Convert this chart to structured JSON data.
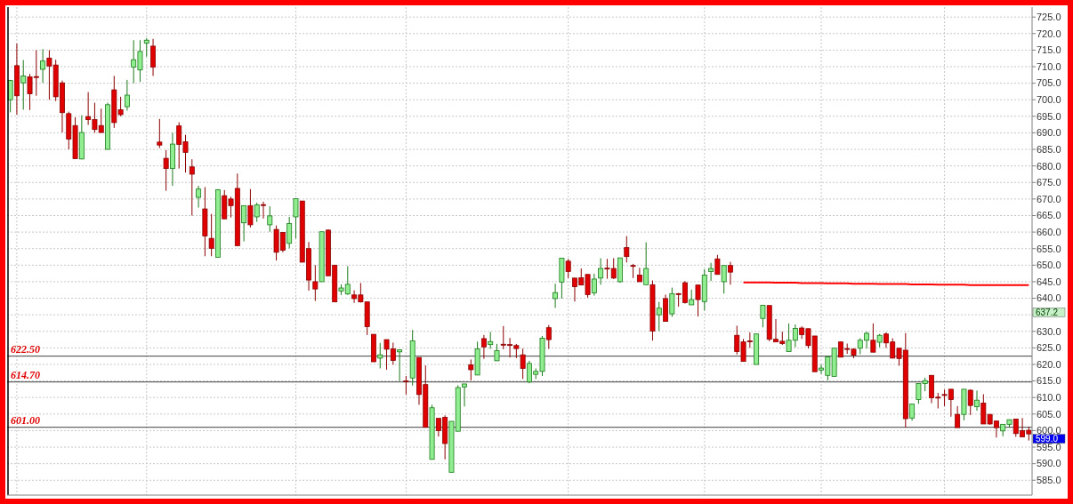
{
  "chart_data": {
    "type": "candlestick",
    "categories": [
      null,
      null,
      null,
      null,
      null,
      null,
      null,
      null,
      null,
      null,
      null,
      null,
      null,
      null,
      null,
      null,
      null,
      null,
      null,
      null,
      null,
      null,
      null,
      null,
      null,
      null,
      null,
      null,
      null,
      null,
      null,
      null,
      null,
      null,
      null,
      null,
      null,
      null,
      null,
      null,
      null,
      null,
      null,
      null,
      null,
      null,
      null,
      null,
      null,
      null,
      null,
      null,
      null,
      null,
      null,
      null,
      null,
      null,
      null,
      null,
      null,
      null,
      null,
      null,
      null,
      null,
      null,
      null,
      null,
      null,
      null,
      null,
      null,
      null,
      null,
      null,
      null,
      null,
      null,
      null,
      null,
      null,
      null,
      null,
      null,
      null,
      null,
      null,
      null,
      null,
      null,
      null,
      null,
      null,
      null,
      null,
      null,
      null,
      null,
      null,
      null,
      null,
      null,
      null,
      null,
      null,
      null,
      null,
      null,
      null,
      null,
      null,
      null,
      null,
      null,
      null,
      null,
      null,
      null,
      null,
      null,
      null,
      null,
      null,
      null,
      null,
      null,
      null,
      null,
      null,
      null,
      null,
      null,
      null,
      null,
      null,
      null,
      null,
      null,
      null,
      null,
      null,
      null,
      null,
      null,
      null,
      null,
      null,
      null,
      null,
      null,
      null,
      null,
      null,
      null,
      null,
      null,
      null
    ],
    "ohlc": [
      [
        700.0,
        706,
        696.2,
        705.8
      ],
      [
        710.3,
        717,
        695.5,
        701.2
      ],
      [
        705.1,
        712,
        697,
        707.2
      ],
      [
        706.9,
        707.8,
        696.9,
        701.8
      ],
      [
        707,
        715,
        701.2,
        706.8
      ],
      [
        709.2,
        715.3,
        705.1,
        711.7
      ],
      [
        712.6,
        715,
        700,
        710.2
      ],
      [
        710.5,
        712.1,
        699.6,
        700.9
      ],
      [
        705.1,
        705.8,
        690.1,
        696.1
      ],
      [
        695.8,
        696.4,
        685,
        688.1
      ],
      [
        692.2,
        694.7,
        682.2,
        682.2
      ],
      [
        682.1,
        695.3,
        682,
        690.1
      ],
      [
        694.9,
        702.3,
        692.4,
        694
      ],
      [
        694,
        699.1,
        690,
        691
      ],
      [
        692.2,
        697.3,
        690.1,
        690.1
      ],
      [
        685,
        699.1,
        685,
        698.5
      ],
      [
        703,
        707.2,
        691.5,
        693.1
      ],
      [
        697,
        700.9,
        695,
        695.5
      ],
      [
        697.9,
        706,
        696.7,
        701.4
      ],
      [
        709.9,
        718,
        705,
        712.1
      ],
      [
        709,
        718,
        705.4,
        714.6
      ],
      [
        717.1,
        718.6,
        713,
        718
      ],
      [
        716.2,
        718.4,
        707.2,
        709.9
      ],
      [
        687.2,
        694.2,
        685.4,
        686.3
      ],
      [
        682.3,
        684.8,
        672.5,
        679.2
      ],
      [
        679.2,
        690,
        674,
        686.6
      ],
      [
        692.1,
        693.2,
        679.2,
        686.5
      ],
      [
        687.3,
        689.4,
        678,
        684.1
      ],
      [
        679.7,
        682,
        665,
        677.5
      ],
      [
        670.5,
        674,
        667.4,
        673
      ],
      [
        667,
        673.6,
        652.7,
        658.8
      ],
      [
        658.1,
        665.5,
        652.7,
        655.1
      ],
      [
        652.4,
        673,
        652.4,
        672.8
      ],
      [
        671,
        672.7,
        664,
        664
      ],
      [
        670,
        670.7,
        664.4,
        668
      ],
      [
        673.2,
        677.7,
        655.9,
        655.9
      ],
      [
        662.8,
        668,
        657.2,
        668
      ],
      [
        668,
        673,
        661.4,
        662.2
      ],
      [
        664.6,
        668.9,
        663.1,
        668.2
      ],
      [
        668.3,
        669.2,
        664.1,
        668.1
      ],
      [
        662.2,
        667.8,
        660.1,
        664.9
      ],
      [
        660.8,
        662,
        651.4,
        653.9
      ],
      [
        659.9,
        659.9,
        653.9,
        654.5
      ],
      [
        656.6,
        664.6,
        655.1,
        662.6
      ],
      [
        664.6,
        670.1,
        658.1,
        670.1
      ],
      [
        669.4,
        669.4,
        650.9,
        650.9
      ],
      [
        655,
        657,
        642.3,
        645.5
      ],
      [
        645,
        650,
        639.2,
        642.8
      ],
      [
        645,
        660.1,
        645,
        660.1
      ],
      [
        660.6,
        660.8,
        646.8,
        646.8
      ],
      [
        650,
        650,
        638.9,
        638.9
      ],
      [
        642.2,
        644.2,
        641,
        643.1
      ],
      [
        641.3,
        649.7,
        641,
        644.2
      ],
      [
        641,
        642.4,
        638.6,
        639.9
      ],
      [
        641,
        644.6,
        638.7,
        638.9
      ],
      [
        638.9,
        638.9,
        628.9,
        631.4
      ],
      [
        629.1,
        629.1,
        620.8,
        620.8
      ],
      [
        621.9,
        626.5,
        618.8,
        622.9
      ],
      [
        627.5,
        627.5,
        618.4,
        624.6
      ],
      [
        624.7,
        626.6,
        619.9,
        621.2
      ],
      [
        623.8,
        624.4,
        615,
        624.4
      ],
      [
        615,
        616.5,
        610.9,
        614.9
      ],
      [
        615.9,
        630.4,
        613.6,
        627.1
      ],
      [
        622.1,
        622.1,
        607.8,
        610.9
      ],
      [
        613.9,
        619.7,
        601,
        601
      ],
      [
        591.3,
        607.8,
        591.3,
        606.9
      ],
      [
        603.7,
        603.7,
        598.2,
        600
      ],
      [
        604,
        604.6,
        591.3,
        596.1
      ],
      [
        587.4,
        602.8,
        587.4,
        602.8
      ],
      [
        599.8,
        613.7,
        599.8,
        613
      ],
      [
        613.2,
        614.1,
        607.3,
        614.1
      ],
      [
        619.9,
        621.5,
        615.2,
        618.4
      ],
      [
        616.8,
        626.9,
        616.8,
        624.7
      ],
      [
        627.8,
        628.9,
        621.7,
        625.3
      ],
      [
        626,
        629.8,
        624.7,
        626.9
      ],
      [
        621.1,
        626.2,
        621.1,
        624.2
      ],
      [
        626.1,
        631.6,
        624.6,
        626
      ],
      [
        626,
        628,
        622.1,
        625.9
      ],
      [
        625.7,
        626.2,
        621.9,
        624.8
      ],
      [
        622.9,
        624.8,
        615.6,
        618.8
      ],
      [
        614.7,
        621.1,
        614.3,
        620.3
      ],
      [
        617,
        618.8,
        615.6,
        617.9
      ],
      [
        617.9,
        628.6,
        616.5,
        627.9
      ],
      [
        631.1,
        631.9,
        624.7,
        627.5
      ],
      [
        639.9,
        644.4,
        637.1,
        641.7
      ],
      [
        644.9,
        652.1,
        639.9,
        652.1
      ],
      [
        651.2,
        651.9,
        646.1,
        648.1
      ],
      [
        646.1,
        646.1,
        639,
        643.5
      ],
      [
        646.2,
        649,
        644,
        644
      ],
      [
        647.2,
        647.2,
        640.2,
        641.1
      ],
      [
        641.6,
        647.4,
        640.8,
        645.8
      ],
      [
        646.1,
        652.1,
        644.1,
        649
      ],
      [
        649.1,
        651.9,
        645.9,
        649
      ],
      [
        649,
        652.1,
        645.8,
        646.1
      ],
      [
        645,
        652.2,
        644.7,
        652.2
      ],
      [
        655.3,
        658.8,
        650.8,
        652.6
      ],
      [
        649.9,
        650.4,
        646.1,
        649.8
      ],
      [
        647,
        649.2,
        645,
        645
      ],
      [
        644.1,
        656.9,
        644.1,
        649
      ],
      [
        644.1,
        645.4,
        627.2,
        630.1
      ],
      [
        635,
        638.9,
        630.1,
        637
      ],
      [
        639.9,
        641.1,
        633,
        633
      ],
      [
        635.3,
        643.2,
        634.4,
        641.4
      ],
      [
        641.4,
        641.6,
        637.5,
        641.3
      ],
      [
        644.7,
        645.2,
        638.4,
        638.7
      ],
      [
        638,
        642.6,
        638,
        639.6
      ],
      [
        644,
        644,
        634.5,
        639.6
      ],
      [
        639,
        648.8,
        636.3,
        647
      ],
      [
        648.1,
        650.7,
        645.2,
        649
      ],
      [
        651.9,
        653.1,
        647.2,
        647.2
      ],
      [
        645,
        649.9,
        641.4,
        649.9
      ],
      [
        649.9,
        651,
        644.1,
        647.9
      ],
      [
        628.8,
        631.7,
        623,
        623.9
      ],
      [
        626.8,
        627.7,
        620.9,
        620.9
      ],
      [
        627.1,
        629.7,
        625,
        627
      ],
      [
        620,
        629.2,
        620,
        629.2
      ],
      [
        633.9,
        637.9,
        631.2,
        637.9
      ],
      [
        637.8,
        637.8,
        627,
        627.6
      ],
      [
        627.6,
        633.7,
        626.8,
        626.8
      ],
      [
        627,
        629.9,
        625.9,
        626.3
      ],
      [
        623.9,
        632.4,
        623.9,
        627.3
      ],
      [
        627.3,
        632.1,
        625.2,
        630.9
      ],
      [
        631,
        631.5,
        627.7,
        629
      ],
      [
        630.8,
        630.8,
        624.8,
        625.7
      ],
      [
        628.6,
        628.6,
        617.8,
        617.8
      ],
      [
        618.3,
        620,
        617.1,
        618.9
      ],
      [
        616.7,
        622.3,
        615.2,
        622.3
      ],
      [
        616.4,
        624.9,
        616.4,
        624.9
      ],
      [
        626.8,
        626.8,
        622.2,
        622.2
      ],
      [
        624.8,
        626.3,
        623.2,
        624.7
      ],
      [
        624.6,
        624.9,
        621.9,
        622.8
      ],
      [
        624.9,
        627.9,
        623.1,
        627.3
      ],
      [
        627.3,
        629.9,
        624.8,
        629.4
      ],
      [
        627.3,
        632.4,
        623.7,
        623.7
      ],
      [
        626.7,
        629.2,
        625.2,
        628.8
      ],
      [
        629.2,
        629.7,
        625,
        626.5
      ],
      [
        626.8,
        627.9,
        621.9,
        621.9
      ],
      [
        624.9,
        624.9,
        619.6,
        621.8
      ],
      [
        624.3,
        629.5,
        600.9,
        603.6
      ],
      [
        603.8,
        608,
        603,
        608
      ],
      [
        609.4,
        614.3,
        608.1,
        614.2
      ],
      [
        614.2,
        616,
        611.9,
        615.1
      ],
      [
        616.7,
        616.7,
        608.3,
        609.9
      ],
      [
        610.1,
        611.4,
        606.7,
        610
      ],
      [
        610.9,
        612.4,
        607.4,
        610.8
      ],
      [
        612.5,
        612.5,
        604.2,
        609.4
      ],
      [
        604.9,
        607.4,
        600.9,
        600.9
      ],
      [
        604.9,
        612.5,
        603.1,
        612.5
      ],
      [
        612.2,
        612.5,
        604.7,
        607.6
      ],
      [
        607.2,
        612.1,
        606,
        609.2
      ],
      [
        608.3,
        611,
        602,
        602
      ],
      [
        604.9,
        604.9,
        601.8,
        602
      ],
      [
        602.9,
        602.9,
        597.9,
        600.9
      ],
      [
        599.9,
        601.9,
        598.3,
        601.9
      ],
      [
        601.9,
        603.3,
        600.9,
        603.3
      ],
      [
        603.5,
        603.5,
        598.1,
        599.1
      ],
      [
        600,
        603.8,
        598.1,
        598.1
      ],
      [
        600.1,
        601.2,
        597,
        599
      ]
    ],
    "series": [
      {
        "type": "line",
        "color": "#ff0000",
        "values": [
          null,
          null,
          null,
          null,
          null,
          null,
          null,
          null,
          null,
          null,
          null,
          null,
          null,
          null,
          null,
          null,
          null,
          null,
          null,
          null,
          null,
          null,
          null,
          null,
          null,
          null,
          null,
          null,
          null,
          null,
          null,
          null,
          null,
          null,
          null,
          null,
          null,
          null,
          null,
          null,
          null,
          null,
          null,
          null,
          null,
          null,
          null,
          null,
          null,
          null,
          null,
          null,
          null,
          null,
          null,
          null,
          null,
          null,
          null,
          null,
          null,
          null,
          null,
          null,
          null,
          null,
          null,
          null,
          null,
          null,
          null,
          null,
          null,
          null,
          null,
          null,
          null,
          null,
          null,
          null,
          null,
          null,
          null,
          null,
          null,
          null,
          null,
          null,
          null,
          null,
          null,
          null,
          null,
          null,
          null,
          null,
          null,
          null,
          null,
          null,
          null,
          null,
          null,
          null,
          null,
          null,
          null,
          null,
          null,
          null,
          null,
          null,
          null,
          644.8,
          644.8,
          644.8,
          644.8,
          644.8,
          644.7,
          644.7,
          644.7,
          644.7,
          644.6,
          644.6,
          644.6,
          644.6,
          644.5,
          644.5,
          644.5,
          644.5,
          644.4,
          644.4,
          644.4,
          644.4,
          644.3,
          644.3,
          644.3,
          644.3,
          644.3,
          644.2,
          644.2,
          644.2,
          644.2,
          644.1,
          644.1,
          644.1,
          644.1,
          644.1,
          644.0,
          644.0,
          644.0,
          644.0,
          644.0,
          644.0,
          644.0,
          644.0,
          644.0,
          644.0
        ]
      }
    ],
    "ylim": [
      580.5,
      728
    ],
    "yticks": [
      {
        "value": 585,
        "label": "585.0"
      },
      {
        "value": 590,
        "label": "590.0"
      },
      {
        "value": 595,
        "label": "595.0"
      },
      {
        "value": 600,
        "label": "600.0"
      },
      {
        "value": 605,
        "label": "605.0"
      },
      {
        "value": 610,
        "label": "610.0"
      },
      {
        "value": 615,
        "label": "615.0"
      },
      {
        "value": 620,
        "label": "620.0"
      },
      {
        "value": 625,
        "label": "625.0"
      },
      {
        "value": 630,
        "label": "630.0"
      },
      {
        "value": 635,
        "label": null
      },
      {
        "value": 640,
        "label": "640.0"
      },
      {
        "value": 645,
        "label": "645.0"
      },
      {
        "value": 650,
        "label": "650.0"
      },
      {
        "value": 655,
        "label": "655.0"
      },
      {
        "value": 660,
        "label": "660.0"
      },
      {
        "value": 665,
        "label": "665.0"
      },
      {
        "value": 670,
        "label": "670.0"
      },
      {
        "value": 675,
        "label": "675.0"
      },
      {
        "value": 680,
        "label": "680.0"
      },
      {
        "value": 685,
        "label": "685.0"
      },
      {
        "value": 690,
        "label": "690.0"
      },
      {
        "value": 695,
        "label": "695.0"
      },
      {
        "value": 700,
        "label": "700.0"
      },
      {
        "value": 705,
        "label": "705.0"
      },
      {
        "value": 710,
        "label": "710.0"
      },
      {
        "value": 715,
        "label": "715.0"
      },
      {
        "value": 720,
        "label": "720.0"
      },
      {
        "value": 725,
        "label": "725.0"
      }
    ],
    "grid": "y",
    "ref_lines": [
      {
        "axis": "y",
        "value": 622.5,
        "label": "622.50",
        "color": "#404040"
      },
      {
        "axis": "y",
        "value": 614.7,
        "label": "614.70",
        "color": "#404040"
      },
      {
        "axis": "y",
        "value": 601.0,
        "label": "601.00",
        "color": "#404040"
      }
    ],
    "annotations": [
      "637.2",
      "599.0"
    ]
  }
}
